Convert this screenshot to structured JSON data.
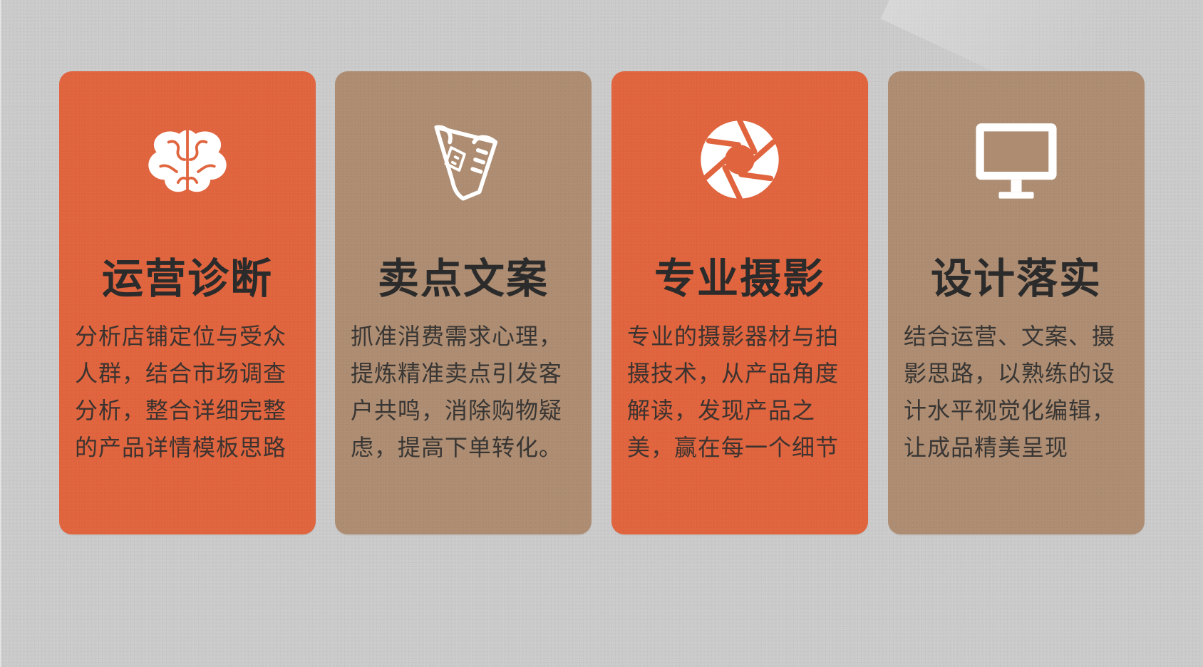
{
  "cards": [
    {
      "title": "运营诊断",
      "body": "分析店铺定位与受众人群，结合市场调查分析，整合详细完整的产品详情模板思路",
      "icon": "brain-icon",
      "background_color": "#e0643d"
    },
    {
      "title": "卖点文案",
      "body": "抓准消费需求心理，提炼精准卖点引发客户共鸣，消除购物疑虑，提高下单转化。",
      "icon": "scroll-icon",
      "background_color": "#ad8c71"
    },
    {
      "title": "专业摄影",
      "body": "专业的摄影器材与拍摄技术，从产品角度解读，发现产品之美，赢在每一个细节",
      "icon": "camera-aperture-icon",
      "background_color": "#e0643d"
    },
    {
      "title": "设计落实",
      "body": "结合运营、文案、摄影思路，以熟练的设计水平视觉化编辑，让成品精美呈现",
      "icon": "monitor-icon",
      "background_color": "#ad8c71"
    }
  ],
  "colors": {
    "background": "#c9c9c9",
    "accent_orange": "#e0643d",
    "accent_tan": "#ad8c71",
    "text_dark": "#2b2b2b",
    "icon_white": "#ffffff"
  }
}
